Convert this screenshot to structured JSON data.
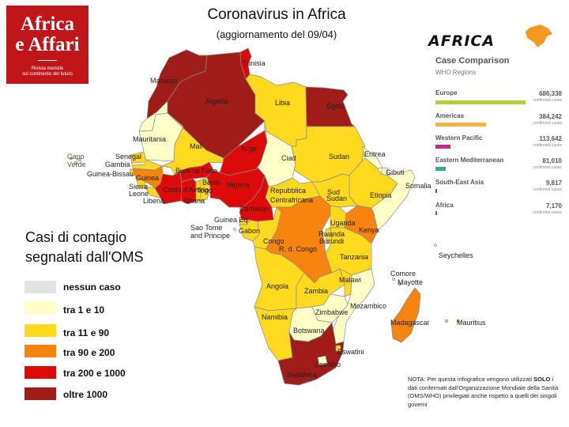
{
  "title": "Coronavirus in Africa",
  "subtitle": "(aggiornamento del 09/04)",
  "logo": {
    "line1": "Africa",
    "line2": "e Affari",
    "tag1": "Rivista mensile",
    "tag2": "sul continente del futuro"
  },
  "brand": "AFRICA",
  "legend": {
    "title_line1": "Casi di contagio",
    "title_line2": "segnalati dall'OMS",
    "items": [
      {
        "label": "nessun caso",
        "color": "#e2e2e2"
      },
      {
        "label": "tra 1 e 10",
        "color": "#ffffc8"
      },
      {
        "label": "tra 11 e 90",
        "color": "#ffd91e"
      },
      {
        "label": "tra 90 e 200",
        "color": "#f88410"
      },
      {
        "label": "tra 200 e 1000",
        "color": "#dd0a0a"
      },
      {
        "label": "oltre 1000",
        "color": "#a01c18"
      }
    ]
  },
  "case_comparison": {
    "title": "Case Comparison",
    "subtitle": "WHO Regions",
    "unit": "confirmed cases",
    "regions": [
      {
        "name": "Europe",
        "cases": 686338,
        "display": "686,338",
        "color": "#b7cc3e"
      },
      {
        "name": "Americas",
        "cases": 384242,
        "display": "384,242",
        "color": "#f2b43a"
      },
      {
        "name": "Western Pacific",
        "cases": 113642,
        "display": "113,642",
        "color": "#c2288e"
      },
      {
        "name": "Eastern Mediterranean",
        "cases": 81010,
        "display": "81,010",
        "color": "#3aa88a"
      },
      {
        "name": "South-East Asia",
        "cases": 9817,
        "display": "9,817",
        "color": "#2a5ab0"
      },
      {
        "name": "Africa",
        "cases": 7170,
        "display": "7,170",
        "color": "#3470bc"
      }
    ]
  },
  "countries": {
    "tunisia": "Tunisia",
    "morocco": "Marocco",
    "algeria": "Algeria",
    "libya": "Libia",
    "egypt": "Egitto",
    "mauritania": "Mauritania",
    "mali": "Mali",
    "niger": "Niger",
    "chad": "Ciad",
    "sudan": "Sudan",
    "eritrea": "Eritrea",
    "djibouti": "Gibuti",
    "cape_verde_1": "Capo",
    "cape_verde_2": "Verde",
    "senegal": "Senegal",
    "gambia": "Gambia",
    "guinea_bissau": "Guinea-Bissau",
    "guinea": "Guinea",
    "sierra_leone_1": "Sierra",
    "sierra_leone_2": "Leone",
    "liberia": "Liberia",
    "cote_divoire": "Costa d'Avorio",
    "burkina": "Burkina Faso",
    "ghana": "Ghana",
    "togo": "Togo",
    "benin": "Benin",
    "nigeria": "Nigeria",
    "car_1": "Repubblica",
    "car_2": "Centrafricana",
    "south_sudan_1": "Sud",
    "south_sudan_2": "Sudan",
    "ethiopia": "Etiopia",
    "somalia": "Somalia",
    "cameroon": "Camerun",
    "eq_guinea": "Guinea Eq.",
    "stp_1": "Sao Tome",
    "stp_2": "and Principe",
    "gabon": "Gabon",
    "congo": "Congo",
    "drc": "R. d. Congo",
    "uganda": "Uganda",
    "kenya": "Kenya",
    "rwanda": "Rwanda",
    "burundi": "Burundi",
    "tanzania": "Tanzania",
    "seychelles": "Seychelles",
    "angola": "Angola",
    "zambia": "Zambia",
    "malawi": "Malawi",
    "comoros": "Comore",
    "mayotte": "Mayotte",
    "mozambique": "Mozambico",
    "zimbabwe": "Zimbabwe",
    "namibia": "Namibia",
    "botswana": "Botswana",
    "madagascar": "Madagascar",
    "mauritius": "Mauritius",
    "eswatini": "Eswatini",
    "lesotho": "Lesotho",
    "south_africa": "Sudafrica"
  },
  "note": {
    "part1": "NOTA: Per questa infografica vengono utilizzati ",
    "bold": "SOLO",
    "part2": " i dati confermati dall'Organizzazione Mondiale della Sanità (OMS/WHO) privilegiati anche rispetto a quelli dei singoli  governi"
  }
}
